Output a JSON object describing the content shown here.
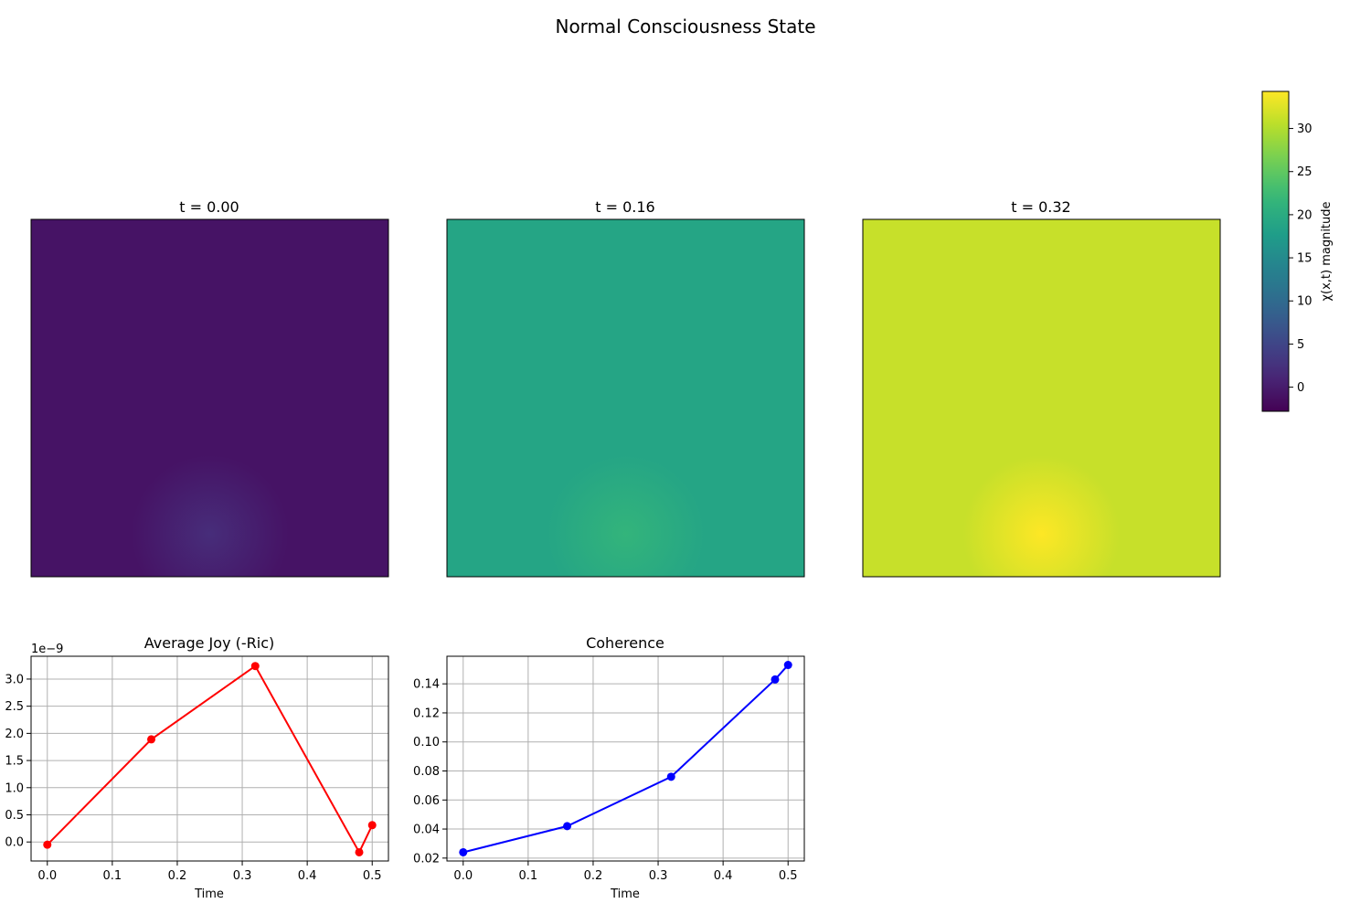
{
  "figure": {
    "title": "Normal Consciousness State"
  },
  "chart_data": [
    {
      "type": "heatmap",
      "title": "t = 0.00",
      "colormap": "viridis",
      "base_value": -0.9,
      "peak_value": 1.9
    },
    {
      "type": "heatmap",
      "title": "t = 0.16",
      "colormap": "viridis",
      "base_value": 18.9,
      "peak_value": 21.5
    },
    {
      "type": "heatmap",
      "title": "t = 0.32",
      "colormap": "viridis",
      "base_value": 31.2,
      "peak_value": 34.3
    },
    {
      "type": "colorbar",
      "label": "χ(x,t) magnitude",
      "colormap": "viridis",
      "range": [
        -2.8,
        34.3
      ],
      "ticks": [
        0,
        5,
        10,
        15,
        20,
        25,
        30
      ]
    },
    {
      "type": "line",
      "title": "Average Joy (-Ric)",
      "xlabel": "Time",
      "ylabel": "",
      "offset_label": "1e−9",
      "x": [
        0.0,
        0.16,
        0.32,
        0.48,
        0.5
      ],
      "y": [
        -0.05,
        1.89,
        3.24,
        -0.19,
        0.31
      ],
      "xlim": [
        -0.025,
        0.525
      ],
      "ylim": [
        -0.35,
        3.42
      ],
      "xticks": [
        0.0,
        0.1,
        0.2,
        0.3,
        0.4,
        0.5
      ],
      "yticks": [
        0.0,
        0.5,
        1.0,
        1.5,
        2.0,
        2.5,
        3.0
      ],
      "color": "#ff0000",
      "grid": true
    },
    {
      "type": "line",
      "title": "Coherence",
      "xlabel": "Time",
      "ylabel": "",
      "x": [
        0.0,
        0.16,
        0.32,
        0.48,
        0.5
      ],
      "y": [
        0.024,
        0.042,
        0.076,
        0.143,
        0.153
      ],
      "xlim": [
        -0.025,
        0.525
      ],
      "ylim": [
        0.018,
        0.159
      ],
      "xticks": [
        0.0,
        0.1,
        0.2,
        0.3,
        0.4,
        0.5
      ],
      "yticks": [
        0.02,
        0.04,
        0.06,
        0.08,
        0.1,
        0.12,
        0.14
      ],
      "color": "#0000ff",
      "grid": true
    }
  ]
}
